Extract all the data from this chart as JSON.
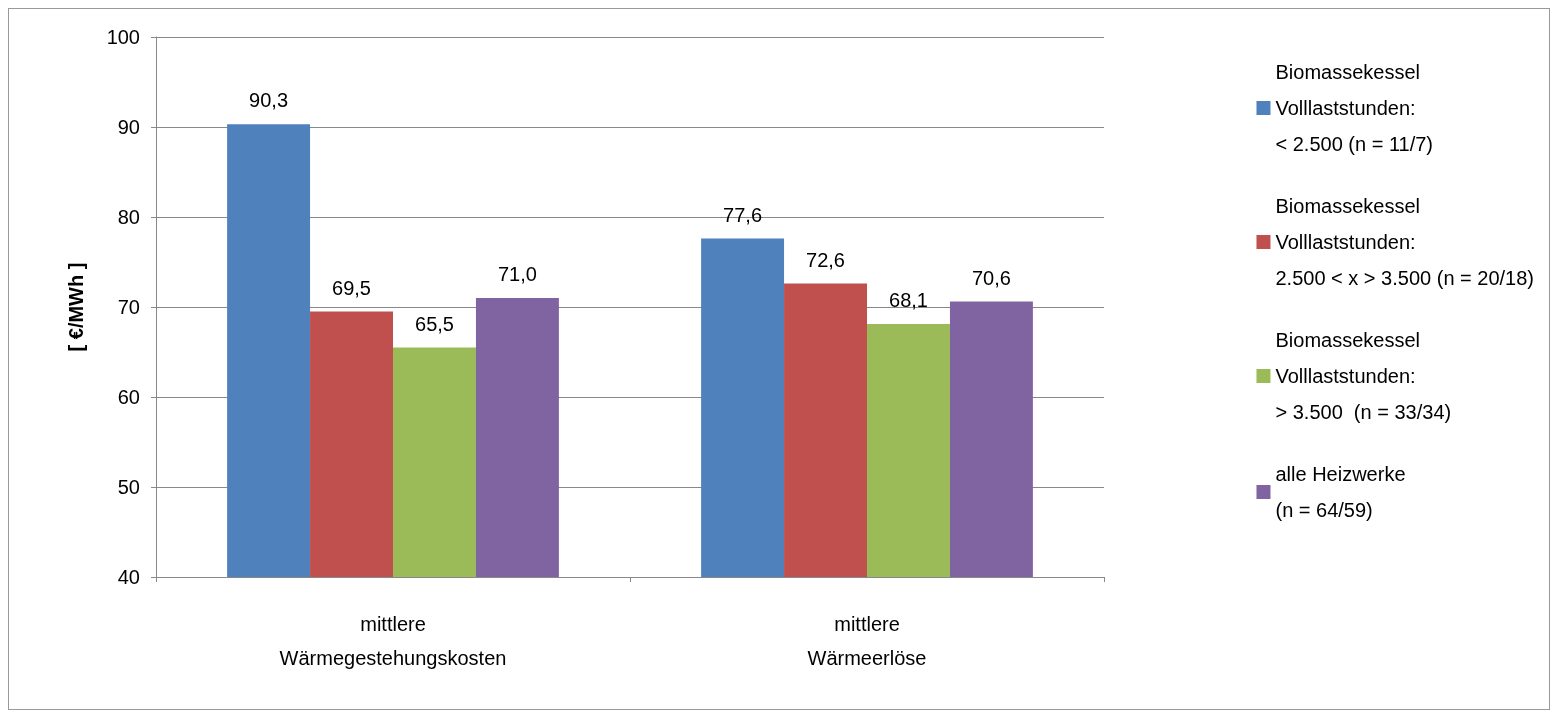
{
  "chart_data": {
    "type": "bar",
    "ylabel": "[ €/MWh ]",
    "categories": [
      "mittlere\nWärmegestehungskosten",
      "mittlere\nWärmeerlöse"
    ],
    "series": [
      {
        "name": "Biomassekessel\nVolllaststunden:\n< 2.500 (n = 11/7)",
        "color": "#4f81bd",
        "values": [
          90.3,
          77.6
        ],
        "value_labels": [
          "90,3",
          "77,6"
        ]
      },
      {
        "name": "Biomassekessel\nVolllaststunden:\n2.500 < x > 3.500 (n = 20/18)",
        "color": "#c0504d",
        "values": [
          69.5,
          72.6
        ],
        "value_labels": [
          "69,5",
          "72,6"
        ]
      },
      {
        "name": "Biomassekessel\nVolllaststunden:\n> 3.500  (n = 33/34)",
        "color": "#9bbb59",
        "values": [
          65.5,
          68.1
        ],
        "value_labels": [
          "65,5",
          "68,1"
        ]
      },
      {
        "name": "alle Heizwerke\n(n = 64/59)",
        "color": "#8064a2",
        "values": [
          71.0,
          70.6
        ],
        "value_labels": [
          "71,0",
          "70,6"
        ]
      }
    ],
    "ylim": [
      40,
      100
    ],
    "yticks": [
      40,
      50,
      60,
      70,
      80,
      90,
      100
    ],
    "grid": "y",
    "legend": "right"
  }
}
